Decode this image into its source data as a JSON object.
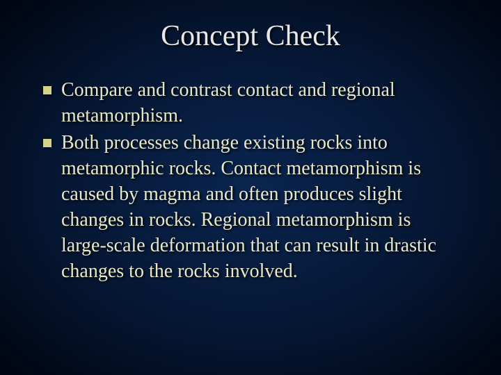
{
  "slide": {
    "title": "Concept Check",
    "bullets": [
      "Compare and contrast contact and regional metamorphism.",
      "Both processes change existing rocks into metamorphic rocks.  Contact metamorphism is caused by magma and often produces slight changes in rocks.  Regional metamorphism is large-scale deformation that can result in drastic changes to the rocks involved."
    ],
    "style": {
      "background_gradient": [
        "#0a2550",
        "#051530",
        "#000510"
      ],
      "title_color": "#e8e8e8",
      "title_fontsize": 42,
      "body_color": "#e8e8c8",
      "body_fontsize": 28,
      "bullet_marker_color": "#d4d488",
      "bullet_marker_size": 12,
      "font_family": "Times New Roman"
    }
  }
}
